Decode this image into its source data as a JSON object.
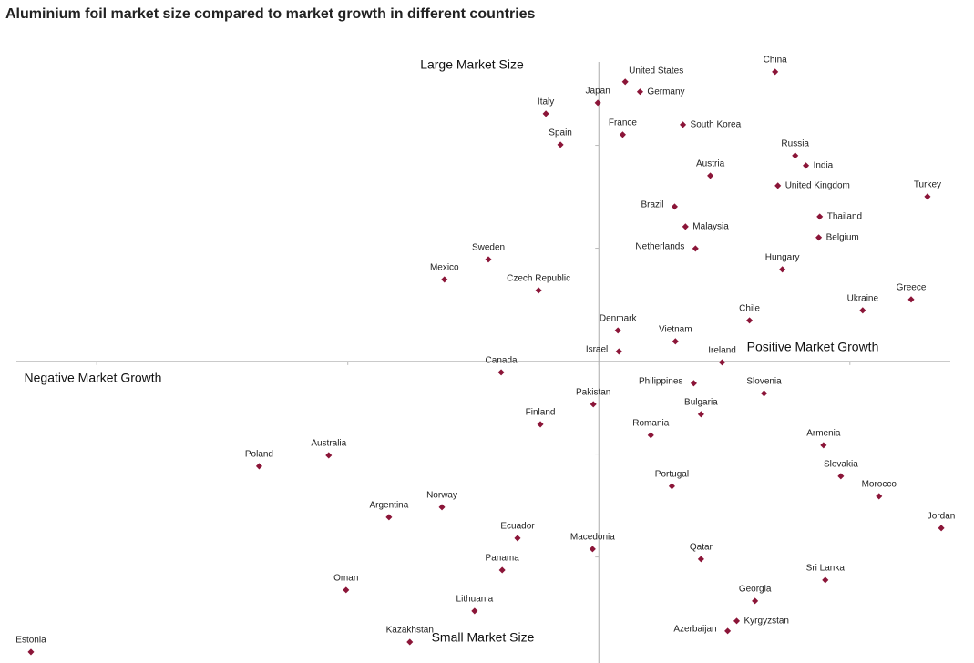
{
  "chart_data": {
    "type": "scatter",
    "title": "Aluminium foil market size compared to market growth in different countries",
    "annotations": [
      "Large Market Size",
      "Positive Market Growth",
      "Negative Market Growth",
      "Small Market Size"
    ],
    "xlim": [
      -232,
      140
    ],
    "ylim": [
      -293,
      291
    ],
    "xticks": [
      -200,
      -100,
      0,
      100
    ],
    "yticks": [
      210,
      110,
      -90,
      -190
    ],
    "color": "#8b1538",
    "points": [
      {
        "name": "China",
        "x": 70.2,
        "y": 281.4
      },
      {
        "name": "United States",
        "x": 10.5,
        "y": 271.7
      },
      {
        "name": "Germany",
        "x": 16.4,
        "y": 262
      },
      {
        "name": "Japan",
        "x": -0.4,
        "y": 251.3
      },
      {
        "name": "Italy",
        "x": -21.1,
        "y": 240.7
      },
      {
        "name": "France",
        "x": 9.5,
        "y": 220.4
      },
      {
        "name": "South Korea",
        "x": 33.5,
        "y": 230.1
      },
      {
        "name": "Spain",
        "x": -15.3,
        "y": 210.6
      },
      {
        "name": "Russia",
        "x": 78.2,
        "y": 200
      },
      {
        "name": "India",
        "x": 82.5,
        "y": 190.3
      },
      {
        "name": "Austria",
        "x": 44.4,
        "y": 180.5
      },
      {
        "name": "United Kingdom",
        "x": 71.3,
        "y": 170.8
      },
      {
        "name": "Turkey",
        "x": 130.9,
        "y": 160.2
      },
      {
        "name": "Brazil",
        "x": 30.2,
        "y": 150.4
      },
      {
        "name": "Thailand",
        "x": 88,
        "y": 140.7
      },
      {
        "name": "Malaysia",
        "x": 34.5,
        "y": 131
      },
      {
        "name": "Belgium",
        "x": 87.6,
        "y": 120.4
      },
      {
        "name": "Netherlands",
        "x": 38.5,
        "y": 109.7
      },
      {
        "name": "Sweden",
        "x": -44,
        "y": 99.1
      },
      {
        "name": "Hungary",
        "x": 73.1,
        "y": 89.4
      },
      {
        "name": "Mexico",
        "x": -61.5,
        "y": 79.6
      },
      {
        "name": "Czech Republic",
        "x": -24,
        "y": 69
      },
      {
        "name": "Greece",
        "x": 124.4,
        "y": 60.2
      },
      {
        "name": "Ukraine",
        "x": 105.1,
        "y": 49.6
      },
      {
        "name": "Chile",
        "x": 60,
        "y": 39.8
      },
      {
        "name": "Denmark",
        "x": 7.6,
        "y": 30.1
      },
      {
        "name": "Vietnam",
        "x": 30.5,
        "y": 19.5
      },
      {
        "name": "Israel",
        "x": 8,
        "y": 9.7
      },
      {
        "name": "Ireland",
        "x": 49.1,
        "y": -0.9
      },
      {
        "name": "Canada",
        "x": -38.9,
        "y": -10.6
      },
      {
        "name": "Philippines",
        "x": 37.8,
        "y": -21.2
      },
      {
        "name": "Slovenia",
        "x": 65.8,
        "y": -31
      },
      {
        "name": "Pakistan",
        "x": -2.2,
        "y": -41.6
      },
      {
        "name": "Bulgaria",
        "x": 40.7,
        "y": -51.3
      },
      {
        "name": "Finland",
        "x": -23.3,
        "y": -61.1
      },
      {
        "name": "Romania",
        "x": 20.7,
        "y": -71.7
      },
      {
        "name": "Armenia",
        "x": 89.5,
        "y": -81.4
      },
      {
        "name": "Australia",
        "x": -107.6,
        "y": -91.2
      },
      {
        "name": "Poland",
        "x": -135.3,
        "y": -101.8
      },
      {
        "name": "Slovakia",
        "x": 96.4,
        "y": -111.5
      },
      {
        "name": "Portugal",
        "x": 29.1,
        "y": -121.2
      },
      {
        "name": "Morocco",
        "x": 111.6,
        "y": -131
      },
      {
        "name": "Norway",
        "x": -62.5,
        "y": -141.6
      },
      {
        "name": "Argentina",
        "x": -83.6,
        "y": -151.3
      },
      {
        "name": "Jordan",
        "x": 136.4,
        "y": -161.9
      },
      {
        "name": "Ecuador",
        "x": -32.4,
        "y": -171.7
      },
      {
        "name": "Macedonia",
        "x": -2.5,
        "y": -182.3
      },
      {
        "name": "Qatar",
        "x": 40.7,
        "y": -192
      },
      {
        "name": "Panama",
        "x": -38.5,
        "y": -202.7
      },
      {
        "name": "Sri Lanka",
        "x": 90.2,
        "y": -212.4
      },
      {
        "name": "Oman",
        "x": -100.7,
        "y": -222.1
      },
      {
        "name": "Georgia",
        "x": 62.2,
        "y": -232.7
      },
      {
        "name": "Lithuania",
        "x": -49.5,
        "y": -242.5
      },
      {
        "name": "Kyrgyzstan",
        "x": 54.9,
        "y": -252.2
      },
      {
        "name": "Azerbaijan",
        "x": 51.3,
        "y": -261.9
      },
      {
        "name": "Kazakhstan",
        "x": -75.3,
        "y": -272.6
      },
      {
        "name": "Estonia",
        "x": -226.2,
        "y": -282.3
      }
    ]
  }
}
